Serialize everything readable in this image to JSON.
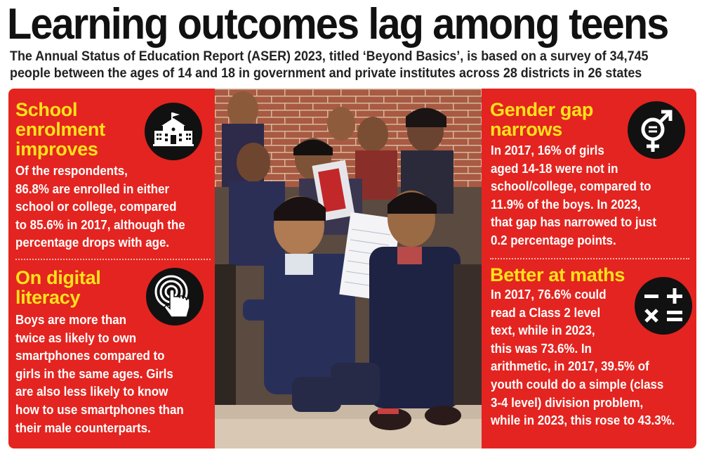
{
  "headline": "Learning outcomes lag among teens",
  "subtitle": {
    "line1": "The Annual Status of Education Report  (ASER) 2023, titled ‘Beyond Basics’, is based on a survey of 34,745",
    "line2": "people between the ages of 14 and 18 in government and private institutes across 28 districts in 26 states"
  },
  "sections": {
    "enrolment": {
      "heading": [
        "School",
        "enrolment",
        "improves"
      ],
      "body": [
        "Of the respondents,",
        "86.8% are enrolled in either",
        "school or college, compared",
        "to 85.6% in 2017, although the",
        "percentage drops with age."
      ],
      "icon": "school-building-icon"
    },
    "digital": {
      "heading": [
        "On digital",
        "literacy"
      ],
      "body": [
        "Boys are more than",
        "twice as likely to own",
        "smartphones compared to",
        "girls in the same ages. Girls",
        "are also less likely to know",
        "how to use smartphones than",
        "their male counterparts."
      ],
      "icon": "touch-tap-icon"
    },
    "gender": {
      "heading": [
        "Gender gap",
        "narrows"
      ],
      "body": [
        "In 2017, 16% of girls",
        "aged 14-18 were not in",
        "school/college, compared to",
        "11.9% of the boys. In 2023,",
        "that gap has narrowed to just",
        "0.2 percentage points."
      ],
      "icon": "gender-symbol-icon"
    },
    "maths": {
      "heading": [
        "Better at maths"
      ],
      "body": [
        "In 2017, 76.6% could",
        "read a Class 2 level",
        "text, while in 2023,",
        "this was 73.6%. In",
        "arithmetic, in 2017, 39.5% of",
        "youth could do a simple (class",
        "3-4 level) division problem,",
        "while in 2023, this rose to 43.3%."
      ],
      "icon": "math-operators-icon"
    }
  },
  "colors": {
    "panel": "#e42420",
    "heading": "#ffe21a",
    "body": "#ffffff",
    "icon_bg": "#111111"
  }
}
